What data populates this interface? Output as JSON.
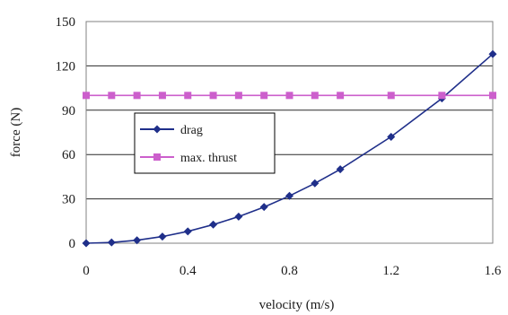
{
  "chart_data": {
    "type": "line",
    "xlabel": "velocity (m/s)",
    "ylabel": "force (N)",
    "xlim": [
      0,
      1.6
    ],
    "ylim": [
      0,
      150
    ],
    "x_ticks": [
      "0",
      "0.4",
      "0.8",
      "1.2",
      "1.6"
    ],
    "x_tick_values": [
      0,
      0.4,
      0.8,
      1.2,
      1.6
    ],
    "y_ticks": [
      "0",
      "30",
      "60",
      "90",
      "120",
      "150"
    ],
    "y_tick_values": [
      0,
      30,
      60,
      90,
      120,
      150
    ],
    "grid": "horizontal",
    "legend_position": "center-left",
    "series": [
      {
        "name": "drag",
        "marker": "diamond",
        "color": "#1f2f8a",
        "x": [
          0,
          0.1,
          0.2,
          0.3,
          0.4,
          0.5,
          0.6,
          0.7,
          0.8,
          0.9,
          1.0,
          1.2,
          1.4,
          1.6
        ],
        "y": [
          0,
          0.5,
          2,
          4.5,
          8,
          12.6,
          18,
          24.5,
          32,
          40.5,
          50,
          72,
          98,
          128
        ]
      },
      {
        "name": "max. thrust",
        "marker": "square",
        "color": "#cc5fcc",
        "x": [
          0,
          0.1,
          0.2,
          0.3,
          0.4,
          0.5,
          0.6,
          0.7,
          0.8,
          0.9,
          1.0,
          1.2,
          1.4,
          1.6
        ],
        "y": [
          100,
          100,
          100,
          100,
          100,
          100,
          100,
          100,
          100,
          100,
          100,
          100,
          100,
          100
        ]
      }
    ]
  }
}
